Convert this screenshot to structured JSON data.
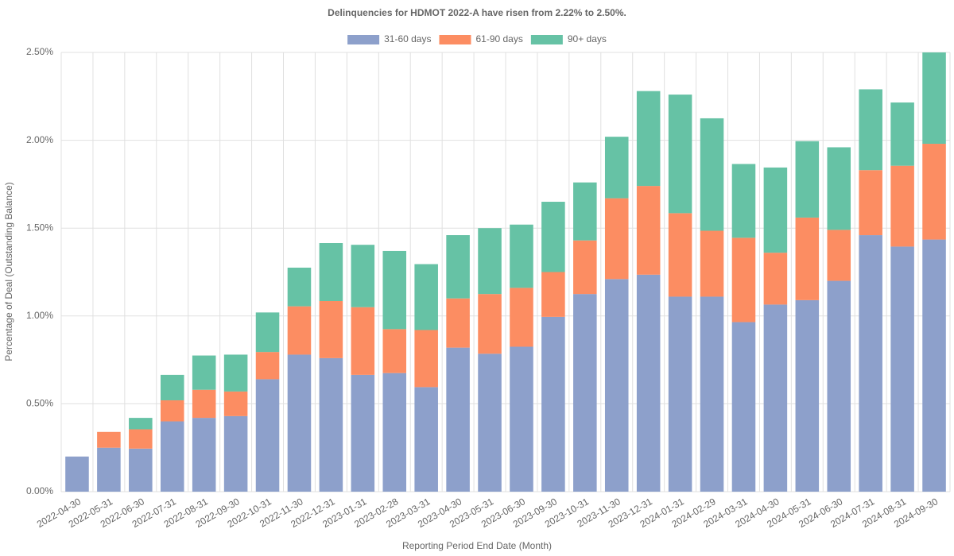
{
  "chart_data": {
    "type": "stacked_bar",
    "title": "Delinquencies for HDMOT 2022-A have risen from 2.22% to 2.50%.",
    "x_label": "Reporting Period End Date (Month)",
    "y_label": "Percentage of Deal (Outstanding Balance)",
    "categories": [
      "2022-04-30",
      "2022-05-31",
      "2022-06-30",
      "2022-07-31",
      "2022-08-31",
      "2022-09-30",
      "2022-10-31",
      "2022-11-30",
      "2022-12-31",
      "2023-01-31",
      "2023-02-28",
      "2023-03-31",
      "2023-04-30",
      "2023-05-31",
      "2023-06-30",
      "2023-09-30",
      "2023-10-31",
      "2023-11-30",
      "2023-12-31",
      "2024-01-31",
      "2024-02-29",
      "2024-03-31",
      "2024-04-30",
      "2024-05-31",
      "2024-06-30",
      "2024-07-31",
      "2024-08-31",
      "2024-09-30"
    ],
    "series": [
      {
        "name": "31-60 days",
        "color": "#8da0cb",
        "values": [
          0.2,
          0.25,
          0.245,
          0.4,
          0.42,
          0.43,
          0.64,
          0.78,
          0.76,
          0.665,
          0.675,
          0.595,
          0.82,
          0.785,
          0.825,
          0.995,
          1.125,
          1.21,
          1.235,
          1.11,
          1.11,
          0.965,
          1.065,
          1.09,
          1.2,
          1.46,
          1.395,
          1.435
        ]
      },
      {
        "name": "61-90 days",
        "color": "#fc8d62",
        "values": [
          0,
          0.09,
          0.11,
          0.12,
          0.16,
          0.14,
          0.155,
          0.275,
          0.325,
          0.385,
          0.25,
          0.325,
          0.28,
          0.34,
          0.335,
          0.255,
          0.305,
          0.46,
          0.505,
          0.475,
          0.375,
          0.48,
          0.295,
          0.47,
          0.29,
          0.37,
          0.46,
          0.545
        ]
      },
      {
        "name": "90+ days",
        "color": "#66c2a5",
        "values": [
          0,
          0,
          0.065,
          0.145,
          0.195,
          0.21,
          0.225,
          0.22,
          0.33,
          0.355,
          0.445,
          0.375,
          0.36,
          0.375,
          0.36,
          0.4,
          0.33,
          0.35,
          0.54,
          0.675,
          0.64,
          0.42,
          0.485,
          0.435,
          0.47,
          0.46,
          0.36,
          0.52
        ]
      }
    ],
    "ylim": [
      0,
      2.5
    ],
    "yticks": [
      {
        "value": 0,
        "label": "0.00%"
      },
      {
        "value": 0.5,
        "label": "0.50%"
      },
      {
        "value": 1,
        "label": "1.00%"
      },
      {
        "value": 1.5,
        "label": "1.50%"
      },
      {
        "value": 2,
        "label": "2.00%"
      },
      {
        "value": 2.5,
        "label": "2.50%"
      }
    ],
    "grid": true,
    "legend": "top"
  }
}
